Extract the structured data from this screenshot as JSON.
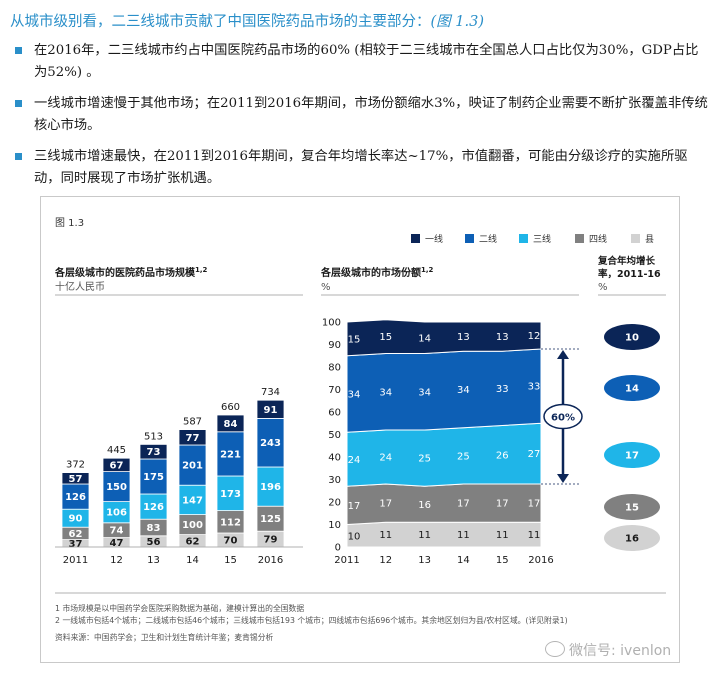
{
  "heading": {
    "text": "从城市级别看，二三线城市贡献了中国医院药品市场的主要部分：",
    "ref": "(图 1.3)"
  },
  "bullets": [
    "在2016年，二三线城市约占中国医院药品市场的60% (相较于二三线城市在全国总人口占比仅为30%，GDP占比为52%) 。",
    "一线城市增速慢于其他市场；在2011到2016年期间，市场份额缩水3%，映证了制药企业需要不断扩张覆盖非传统核心市场。",
    "三线城市增速最快，在2011到2016年期间，复合年均增长率达~17%，市值翻番，可能由分级诊疗的实施所驱动，同时展现了市场扩张机遇。"
  ],
  "figure_label": "图 1.3",
  "legend": {
    "items": [
      {
        "label": "一线",
        "color": "#0b2557"
      },
      {
        "label": "二线",
        "color": "#0d5fb5"
      },
      {
        "label": "三线",
        "color": "#1fb5e8"
      },
      {
        "label": "四线",
        "color": "#808080"
      },
      {
        "label": "县",
        "color": "#d2d2d2"
      }
    ]
  },
  "chart_data": [
    {
      "type": "bar",
      "stacked": true,
      "title": "各层级城市的医院药品市场规模",
      "title_sup": "1,2",
      "unit": "十亿人民币",
      "categories": [
        "2011",
        "12",
        "13",
        "14",
        "15",
        "2016"
      ],
      "totals": [
        372,
        445,
        513,
        587,
        660,
        734
      ],
      "series": [
        {
          "name": "县",
          "color": "#d2d2d2",
          "values": [
            37,
            47,
            56,
            62,
            70,
            79
          ]
        },
        {
          "name": "四线",
          "color": "#808080",
          "values": [
            62,
            74,
            83,
            100,
            112,
            125
          ]
        },
        {
          "name": "三线",
          "color": "#1fb5e8",
          "values": [
            90,
            106,
            126,
            147,
            173,
            196
          ]
        },
        {
          "name": "二线",
          "color": "#0d5fb5",
          "values": [
            126,
            150,
            175,
            201,
            221,
            243
          ]
        },
        {
          "name": "一线",
          "color": "#0b2557",
          "values": [
            57,
            67,
            73,
            77,
            84,
            91
          ]
        }
      ]
    },
    {
      "type": "area",
      "stacked": true,
      "title": "各层级城市的市场份额",
      "title_sup": "1,2",
      "unit": "%",
      "x": [
        "2011",
        "12",
        "13",
        "14",
        "15",
        "2016"
      ],
      "ylim": [
        0,
        100
      ],
      "yticks": [
        "0",
        "10",
        "20",
        "30",
        "40",
        "50",
        "60",
        "70",
        "80",
        "90",
        "100"
      ],
      "series": [
        {
          "name": "县",
          "color": "#d2d2d2",
          "values": [
            10,
            11,
            11,
            11,
            11,
            11
          ]
        },
        {
          "name": "四线",
          "color": "#808080",
          "values": [
            17,
            17,
            16,
            17,
            17,
            17
          ]
        },
        {
          "name": "三线",
          "color": "#1fb5e8",
          "values": [
            24,
            24,
            25,
            25,
            26,
            27
          ]
        },
        {
          "name": "二线",
          "color": "#0d5fb5",
          "values": [
            34,
            34,
            34,
            34,
            33,
            33
          ]
        },
        {
          "name": "一线",
          "color": "#0b2557",
          "values": [
            15,
            15,
            14,
            13,
            13,
            12
          ]
        }
      ],
      "annotation": "60%"
    },
    {
      "type": "table",
      "title": "复合年均增长率，2011-16",
      "unit": "%",
      "rows": [
        {
          "name": "一线",
          "value": "10",
          "color": "#0b2557"
        },
        {
          "name": "二线",
          "value": "14",
          "color": "#0d5fb5"
        },
        {
          "name": "三线",
          "value": "17",
          "color": "#1fb5e8"
        },
        {
          "name": "四线",
          "value": "15",
          "color": "#808080"
        },
        {
          "name": "县",
          "value": "16",
          "color": "#d2d2d2"
        }
      ]
    }
  ],
  "footnotes": [
    "1 市场规模是以中国药学会医院采购数据为基础，建模计算出的全国数据",
    "2 一线城市包括4个城市；二线城市包括46个城市；三线城市包括193 个城市；四线城市包括696个城市。其余地区划归为县/农村区域。(详见附录1)"
  ],
  "source": "资料来源：中国药学会；卫生和计划生育统计年鉴；麦肯锡分析",
  "watermark": "微信号: ivenlon"
}
